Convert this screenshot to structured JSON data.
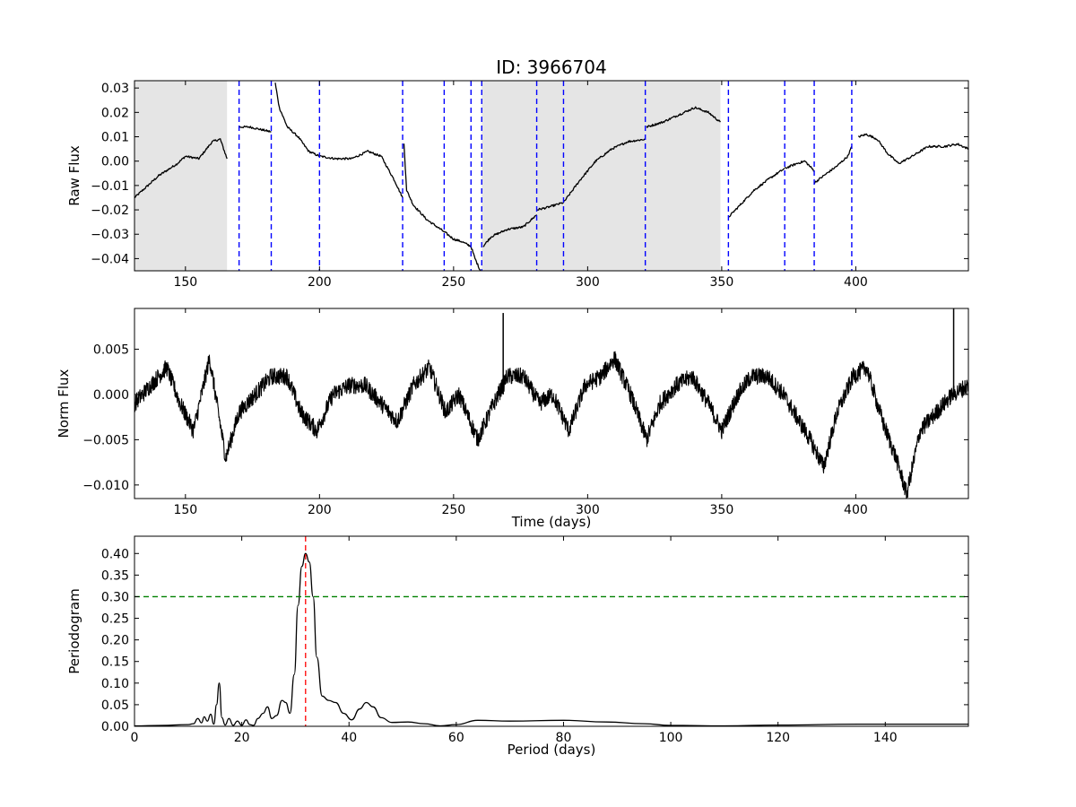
{
  "figure": {
    "title": "ID: 3966704"
  },
  "chart_data": [
    {
      "type": "line",
      "panel": "raw",
      "title": "ID: 3966704",
      "xlabel": "",
      "ylabel": "Raw Flux",
      "xlim": [
        131,
        442
      ],
      "ylim": [
        -0.045,
        0.033
      ],
      "x_ticks": [
        150,
        200,
        250,
        300,
        350,
        400
      ],
      "x_tick_labels": [
        "150",
        "200",
        "250",
        "300",
        "350",
        "400"
      ],
      "y_ticks": [
        -0.04,
        -0.03,
        -0.02,
        -0.01,
        0.0,
        0.01,
        0.02,
        0.03
      ],
      "y_tick_labels": [
        "−0.04",
        "−0.03",
        "−0.02",
        "−0.01",
        "0.00",
        "0.01",
        "0.02",
        "0.03"
      ],
      "shaded_regions": [
        [
          131,
          165.5
        ],
        [
          260.5,
          349.5
        ]
      ],
      "shade_color": "#e5e5e5",
      "breaks": [
        170,
        182,
        200,
        231,
        246.5,
        256.5,
        260.5,
        281,
        291,
        321.5,
        352.5,
        373.5,
        384.5,
        398.5
      ],
      "break_color": "#0000ff",
      "line_color": "#000000",
      "segments": [
        {
          "x": [
            131,
            134,
            140,
            147,
            150,
            155,
            160,
            163,
            165.5
          ],
          "y": [
            -0.015,
            -0.012,
            -0.006,
            -0.001,
            0.002,
            0.001,
            0.008,
            0.009,
            0.001
          ]
        },
        {
          "x": [
            170,
            174,
            178,
            182
          ],
          "y": [
            0.014,
            0.014,
            0.013,
            0.012
          ]
        },
        {
          "x": [
            183.5,
            185,
            188,
            192,
            196,
            200
          ],
          "y": [
            0.032,
            0.022,
            0.014,
            0.01,
            0.004,
            0.002
          ]
        },
        {
          "x": [
            200,
            206,
            212,
            218,
            223,
            228,
            231
          ],
          "y": [
            0.002,
            0.001,
            0.001,
            0.004,
            0.002,
            -0.008,
            -0.015
          ]
        },
        {
          "x": [
            231.5,
            232.5,
            235,
            240,
            246.5
          ],
          "y": [
            0.007,
            -0.012,
            -0.018,
            -0.024,
            -0.029
          ]
        },
        {
          "x": [
            246.5,
            250,
            253,
            256.5
          ],
          "y": [
            -0.029,
            -0.032,
            -0.033,
            -0.035
          ]
        },
        {
          "x": [
            256.5,
            258,
            260
          ],
          "y": [
            -0.035,
            -0.04,
            -0.045
          ]
        },
        {
          "x": [
            261,
            264,
            270,
            276,
            281
          ],
          "y": [
            -0.035,
            -0.031,
            -0.028,
            -0.027,
            -0.022
          ]
        },
        {
          "x": [
            281,
            285,
            291
          ],
          "y": [
            -0.02,
            -0.019,
            -0.017
          ]
        },
        {
          "x": [
            291,
            297,
            303,
            309,
            315,
            321.5
          ],
          "y": [
            -0.017,
            -0.008,
            0.0,
            0.005,
            0.008,
            0.009
          ]
        },
        {
          "x": [
            322,
            328,
            334,
            340,
            345,
            349.5
          ],
          "y": [
            0.014,
            0.016,
            0.019,
            0.022,
            0.02,
            0.016
          ]
        },
        {
          "x": [
            352.5,
            356,
            362,
            368,
            373.5
          ],
          "y": [
            -0.023,
            -0.019,
            -0.012,
            -0.007,
            -0.003
          ]
        },
        {
          "x": [
            373.5,
            378,
            381,
            384.5
          ],
          "y": [
            -0.003,
            -0.001,
            0.0,
            -0.004
          ]
        },
        {
          "x": [
            384.5,
            388,
            393,
            397,
            398.5
          ],
          "y": [
            -0.009,
            -0.006,
            -0.002,
            0.002,
            0.006
          ]
        },
        {
          "x": [
            401,
            404,
            408,
            412,
            416,
            421,
            427,
            433,
            438,
            442
          ],
          "y": [
            0.01,
            0.011,
            0.009,
            0.003,
            -0.001,
            0.002,
            0.006,
            0.006,
            0.007,
            0.005
          ]
        }
      ]
    },
    {
      "type": "line",
      "panel": "norm",
      "title": "",
      "xlabel": "Time (days)",
      "ylabel": "Norm Flux",
      "xlim": [
        131,
        442
      ],
      "ylim": [
        -0.0115,
        0.0095
      ],
      "x_ticks": [
        150,
        200,
        250,
        300,
        350,
        400
      ],
      "x_tick_labels": [
        "150",
        "200",
        "250",
        "300",
        "350",
        "400"
      ],
      "y_ticks": [
        -0.01,
        -0.005,
        0.0,
        0.005
      ],
      "y_tick_labels": [
        "−0.010",
        "−0.005",
        "0.000",
        "0.005"
      ],
      "line_color": "#000000",
      "series": {
        "x": [
          131,
          137,
          143,
          148,
          153,
          159,
          165,
          170,
          176,
          182,
          188,
          193,
          199,
          205,
          211,
          217,
          223,
          229,
          235,
          241,
          247,
          252,
          259,
          265,
          270,
          276,
          282,
          287,
          293,
          299,
          305,
          310,
          316,
          322,
          327,
          333,
          339,
          345,
          350,
          356,
          361,
          367,
          373,
          379,
          383,
          388,
          393,
          399,
          404,
          410,
          415,
          419,
          424,
          430,
          436,
          442
        ],
        "y": [
          -0.001,
          0.001,
          0.003,
          -0.001,
          -0.004,
          0.004,
          -0.007,
          -0.002,
          0.0,
          0.002,
          0.002,
          -0.002,
          -0.004,
          0.0,
          0.001,
          0.001,
          -0.001,
          -0.003,
          0.001,
          0.003,
          -0.002,
          0.0,
          -0.005,
          -0.001,
          0.002,
          0.002,
          -0.001,
          0.0,
          -0.004,
          0.001,
          0.002,
          0.004,
          0.0,
          -0.005,
          -0.001,
          0.001,
          0.002,
          -0.001,
          -0.004,
          0.0,
          0.002,
          0.002,
          0.0,
          -0.003,
          -0.005,
          -0.008,
          -0.002,
          0.002,
          0.003,
          -0.003,
          -0.007,
          -0.011,
          -0.004,
          -0.002,
          0.0,
          0.001
        ]
      },
      "spikes": [
        {
          "x": 268.5,
          "y": 0.009
        },
        {
          "x": 436.5,
          "y": 0.0095
        }
      ]
    },
    {
      "type": "line",
      "panel": "periodogram",
      "title": "",
      "xlabel": "Period (days)",
      "ylabel": "Periodogram",
      "xlim": [
        0,
        155.5
      ],
      "ylim": [
        0,
        0.44
      ],
      "x_ticks": [
        0,
        20,
        40,
        60,
        80,
        100,
        120,
        140
      ],
      "x_tick_labels": [
        "0",
        "20",
        "40",
        "60",
        "80",
        "100",
        "120",
        "140"
      ],
      "y_ticks": [
        0.0,
        0.05,
        0.1,
        0.15,
        0.2,
        0.25,
        0.3,
        0.35,
        0.4
      ],
      "y_tick_labels": [
        "0.00",
        "0.05",
        "0.10",
        "0.15",
        "0.20",
        "0.25",
        "0.30",
        "0.35",
        "0.40"
      ],
      "threshold": 0.3,
      "threshold_color": "#008000",
      "peak_period": 31.9,
      "peak_color": "#ff0000",
      "line_color": "#000000",
      "series": {
        "x": [
          0,
          5,
          10,
          11,
          11.8,
          12.5,
          13,
          13.6,
          14.2,
          14.8,
          15.3,
          15.8,
          16.3,
          16.9,
          17.6,
          18.4,
          19.2,
          20,
          20.8,
          21.5,
          22.2,
          23,
          24,
          24.8,
          25.6,
          26.5,
          27.5,
          28.2,
          29,
          29.8,
          30.5,
          31.2,
          31.9,
          32.6,
          33.3,
          34,
          35,
          36.2,
          37.5,
          39,
          40.5,
          42,
          43.2,
          44.5,
          46,
          48,
          51,
          54,
          57,
          60,
          64,
          70,
          80,
          88,
          95,
          100,
          110,
          120,
          135,
          155.5
        ],
        "y": [
          0.001,
          0.002,
          0.004,
          0.006,
          0.018,
          0.008,
          0.022,
          0.012,
          0.028,
          0.005,
          0.05,
          0.1,
          0.02,
          0.003,
          0.018,
          0.002,
          0.012,
          0.002,
          0.015,
          0.004,
          0.002,
          0.018,
          0.03,
          0.045,
          0.018,
          0.025,
          0.06,
          0.055,
          0.03,
          0.12,
          0.28,
          0.37,
          0.4,
          0.38,
          0.3,
          0.16,
          0.07,
          0.06,
          0.055,
          0.03,
          0.015,
          0.04,
          0.055,
          0.045,
          0.02,
          0.009,
          0.01,
          0.006,
          0.001,
          0.004,
          0.014,
          0.012,
          0.014,
          0.01,
          0.006,
          0.002,
          0.001,
          0.003,
          0.005,
          0.005
        ]
      }
    }
  ]
}
